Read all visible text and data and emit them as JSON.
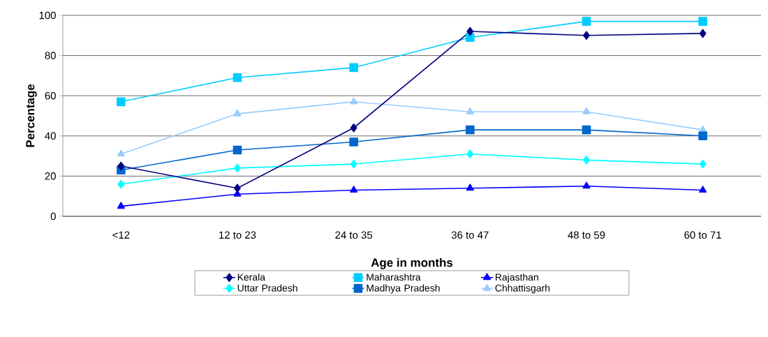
{
  "chart_data": {
    "type": "line",
    "xlabel": "Age in months",
    "ylabel": "Percentage",
    "categories": [
      "<12",
      "12 to 23",
      "24 to 35",
      "36 to 47",
      "48 to 59",
      "60 to 71"
    ],
    "ylim": [
      0,
      100
    ],
    "yticks": [
      0,
      20,
      40,
      60,
      80,
      100
    ],
    "grid": "y",
    "legend": "bottom",
    "line_style": "solid",
    "series": [
      {
        "name": "Kerala",
        "color": "#000080",
        "marker": "diamond",
        "values": [
          25,
          14,
          44,
          92,
          90,
          91
        ]
      },
      {
        "name": "Maharashtra",
        "color": "#00ccff",
        "marker": "square",
        "values": [
          57,
          69,
          74,
          89,
          97,
          97
        ]
      },
      {
        "name": "Rajasthan",
        "color": "#0000ff",
        "marker": "triangle",
        "values": [
          5,
          11,
          13,
          14,
          15,
          13
        ]
      },
      {
        "name": "Uttar Pradesh",
        "color": "#00ffff",
        "marker": "diamond",
        "values": [
          16,
          24,
          26,
          31,
          28,
          26
        ]
      },
      {
        "name": "Madhya Pradesh",
        "color": "#0066cc",
        "marker": "square",
        "values": [
          23,
          33,
          37,
          43,
          43,
          40
        ]
      },
      {
        "name": "Chhattisgarh",
        "color": "#99ccff",
        "marker": "triangle",
        "values": [
          31,
          51,
          57,
          52,
          52,
          43
        ]
      }
    ]
  }
}
